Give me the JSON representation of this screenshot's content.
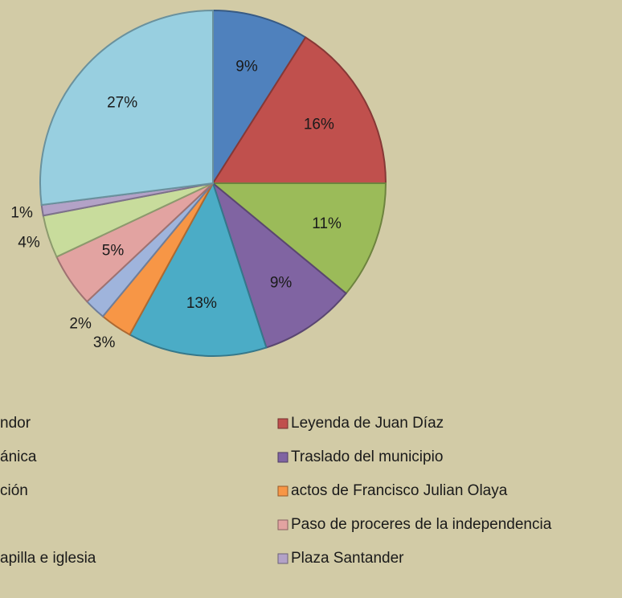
{
  "chart_data": {
    "type": "pie",
    "categories": [
      "ndor",
      "Leyenda de Juan Díaz",
      "ánica",
      "Traslado del municipio",
      "ción",
      "actos de Francisco Julian Olaya",
      null,
      "Paso de proceres de la independencia",
      "apilla e iglesia",
      "Plaza Santander",
      null
    ],
    "values": [
      9,
      16,
      11,
      9,
      13,
      3,
      2,
      5,
      4,
      1,
      27
    ],
    "value_labels": [
      "9%",
      "16%",
      "11%",
      "9%",
      "13%",
      "3%",
      "2%",
      "5%",
      "4%",
      "1%",
      "27%"
    ],
    "colors": [
      "#4f81bd",
      "#c0504d",
      "#9bbb59",
      "#8064a2",
      "#4bacc6",
      "#f79646",
      "#9fb4dc",
      "#e2a3a1",
      "#c8dc9c",
      "#b3a2c7",
      "#98cfe0"
    ]
  }
}
